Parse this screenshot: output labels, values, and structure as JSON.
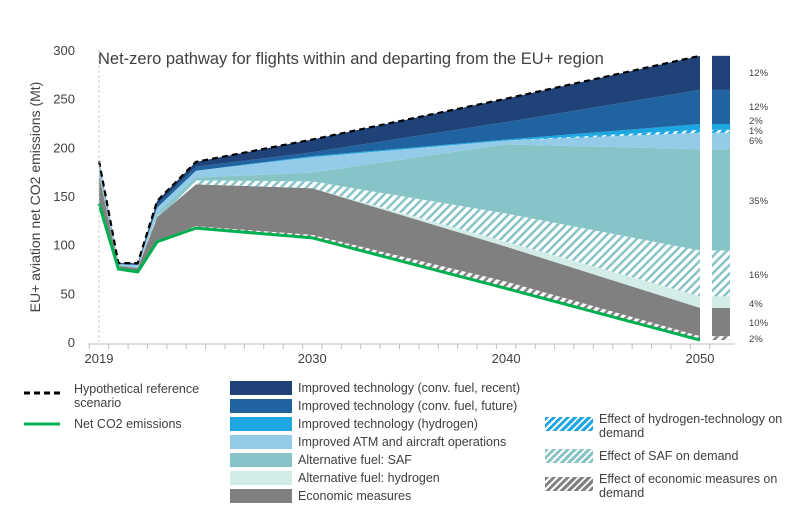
{
  "chart_data": {
    "type": "area",
    "title": "Net-zero pathway for flights within and departing from the EU+ region",
    "ylabel": "EU+ aviation net CO2 emissions (Mt)",
    "xlabel": "",
    "ylim": [
      0,
      300
    ],
    "xlim": [
      2019,
      2050
    ],
    "yticks": [
      "0",
      "50",
      "100",
      "150",
      "200",
      "250",
      "300"
    ],
    "xticks": [
      "2019",
      "2030",
      "2040",
      "2050"
    ],
    "x": [
      2019,
      2020,
      2021,
      2022,
      2024,
      2030,
      2040,
      2050
    ],
    "series": [
      {
        "name": "Net CO2 emissions",
        "top": [
          142,
          75,
          72,
          103,
          117,
          107,
          55,
          2
        ],
        "color": "#00b050"
      },
      {
        "name": "Effect of economic measures on demand",
        "top": [
          142,
          75,
          72,
          104,
          119,
          110,
          62,
          6
        ],
        "color": "#808080",
        "hatched": true
      },
      {
        "name": "Economic measures",
        "top": [
          172,
          78,
          76,
          128,
          162,
          158,
          98,
          35
        ],
        "color": "#808080"
      },
      {
        "name": "Alternative fuel: hydrogen",
        "top": [
          172,
          78,
          76,
          128,
          162,
          158,
          103,
          47
        ],
        "color": "#d3ece8"
      },
      {
        "name": "Effect of SAF on demand",
        "top": [
          173,
          78,
          76,
          130,
          166,
          165,
          132,
          94
        ],
        "color": "#86c4c8",
        "hatched": true
      },
      {
        "name": "Alternative fuel: SAF",
        "top": [
          178,
          79,
          77,
          133,
          169,
          174,
          203,
          198
        ],
        "color": "#86c4c8"
      },
      {
        "name": "Improved ATM and aircraft operations",
        "top": [
          182,
          80,
          79,
          138,
          176,
          190,
          207,
          215
        ],
        "color": "#94cbe9"
      },
      {
        "name": "Effect of hydrogen-technology on demand",
        "top": [
          182,
          80,
          79,
          138,
          176,
          190,
          207,
          218
        ],
        "color": "#1ca7e2",
        "hatched": true
      },
      {
        "name": "Improved technology (hydrogen)",
        "top": [
          182,
          80,
          79,
          138,
          176,
          191,
          208,
          224
        ],
        "color": "#1ca7e2"
      },
      {
        "name": "Improved technology (conv. fuel, future)",
        "top": [
          184,
          80,
          80,
          141,
          180,
          195,
          226,
          259
        ],
        "color": "#1f64a0"
      },
      {
        "name": "Improved technology (conv. fuel, recent)",
        "top": [
          186,
          81,
          81,
          145,
          185,
          208,
          250,
          294
        ],
        "color": "#1f4379"
      },
      {
        "name": "Hypothetical reference scenario",
        "top": [
          186,
          81,
          81,
          145,
          185,
          208,
          250,
          294
        ],
        "color": "#000000",
        "dashed": true
      }
    ],
    "bar_2050_shares": [
      {
        "name": "Improved technology (conv. fuel, recent)",
        "label": "12%"
      },
      {
        "name": "Improved technology (conv. fuel, future)",
        "label": "12%"
      },
      {
        "name": "Improved technology (hydrogen)",
        "label": "2%"
      },
      {
        "name": "Effect of hydrogen-technology on demand",
        "label": "1%"
      },
      {
        "name": "Improved ATM and aircraft operations",
        "label": "6%"
      },
      {
        "name": "Alternative fuel: SAF",
        "label": "35%"
      },
      {
        "name": "Effect of SAF on demand",
        "label": "16%"
      },
      {
        "name": "Alternative fuel: hydrogen",
        "label": "4%"
      },
      {
        "name": "Economic measures",
        "label": "10%"
      },
      {
        "name": "Effect of economic measures on demand",
        "label": "2%"
      }
    ]
  },
  "legend": {
    "ref": "Hypothetical reference scenario",
    "net": "Net CO2 emissions",
    "recent": "Improved technology (conv. fuel, recent)",
    "future": "Improved technology (conv. fuel, future)",
    "h2tech": "Improved technology (hydrogen)",
    "atm": "Improved ATM and aircraft operations",
    "saf": "Alternative fuel: SAF",
    "h2fuel": "Alternative fuel: hydrogen",
    "econ": "Economic measures",
    "h2dem": "Effect of hydrogen-technology on demand",
    "safdem": "Effect of SAF on demand",
    "econdem": "Effect of economic measures on demand"
  }
}
